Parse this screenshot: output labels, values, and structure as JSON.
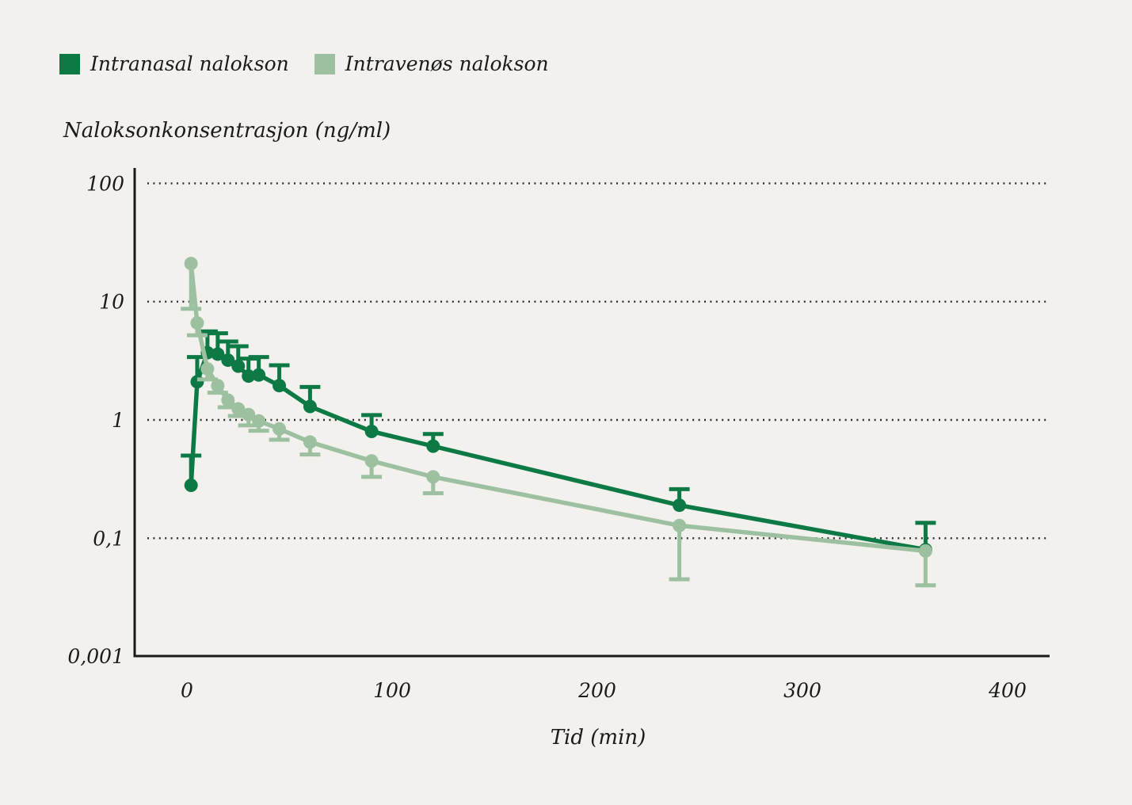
{
  "colors": {
    "background": "#f3f1ee",
    "text": "#1b1b1b",
    "axis": "#1a1a1a",
    "grid": "#2e2c29",
    "intranasal": "#0d7a46",
    "intravenous": "#9dc0a1"
  },
  "legend": {
    "items": [
      {
        "label": "Intranasal nalokson",
        "color_key": "intranasal"
      },
      {
        "label": "Intravenøs nalokson",
        "color_key": "intravenous"
      }
    ]
  },
  "chart_data": {
    "type": "line",
    "title": "",
    "ylabel": "Naloksonkonsentrasjon (ng/ml)",
    "xlabel": "Tid (min)",
    "y_scale": "log",
    "grid": "horizontal-dotted",
    "legend_position": "top-left",
    "xlim": [
      0,
      420
    ],
    "ylim_log": [
      0.001,
      100
    ],
    "x_ticks": [
      {
        "value": 0,
        "label": "0"
      },
      {
        "value": 100,
        "label": "100"
      },
      {
        "value": 200,
        "label": "200"
      },
      {
        "value": 300,
        "label": "300"
      },
      {
        "value": 400,
        "label": "400"
      }
    ],
    "y_ticks": [
      {
        "value": 100,
        "label": "100",
        "grid": true
      },
      {
        "value": 10,
        "label": "10",
        "grid": true
      },
      {
        "value": 1,
        "label": "1",
        "grid": true
      },
      {
        "value": 0.1,
        "label": "0,1",
        "grid": true
      },
      {
        "label": "0,001",
        "at_axis": true
      }
    ],
    "x": [
      2,
      5,
      10,
      15,
      20,
      25,
      30,
      35,
      45,
      60,
      90,
      120,
      240,
      360
    ],
    "series": [
      {
        "name": "Intranasal nalokson",
        "color_key": "intranasal",
        "marker": "circle",
        "error_direction": "up",
        "values": [
          0.28,
          2.1,
          3.7,
          3.6,
          3.2,
          2.85,
          2.35,
          2.4,
          1.95,
          1.3,
          0.8,
          0.6,
          0.19,
          0.08
        ],
        "error_tips": [
          0.5,
          3.4,
          5.6,
          5.4,
          4.6,
          4.2,
          3.3,
          3.4,
          2.9,
          1.9,
          1.1,
          0.76,
          0.26,
          0.135
        ]
      },
      {
        "name": "Intravenøs nalokson",
        "color_key": "intravenous",
        "marker": "circle",
        "error_direction": "down",
        "values": [
          21,
          6.6,
          2.7,
          1.95,
          1.47,
          1.24,
          1.11,
          0.98,
          0.84,
          0.65,
          0.45,
          0.33,
          0.128,
          0.078
        ],
        "error_tips": [
          8.7,
          5.2,
          2.2,
          1.7,
          1.28,
          1.08,
          0.9,
          0.81,
          0.68,
          0.51,
          0.33,
          0.24,
          0.045,
          0.04
        ]
      }
    ]
  }
}
